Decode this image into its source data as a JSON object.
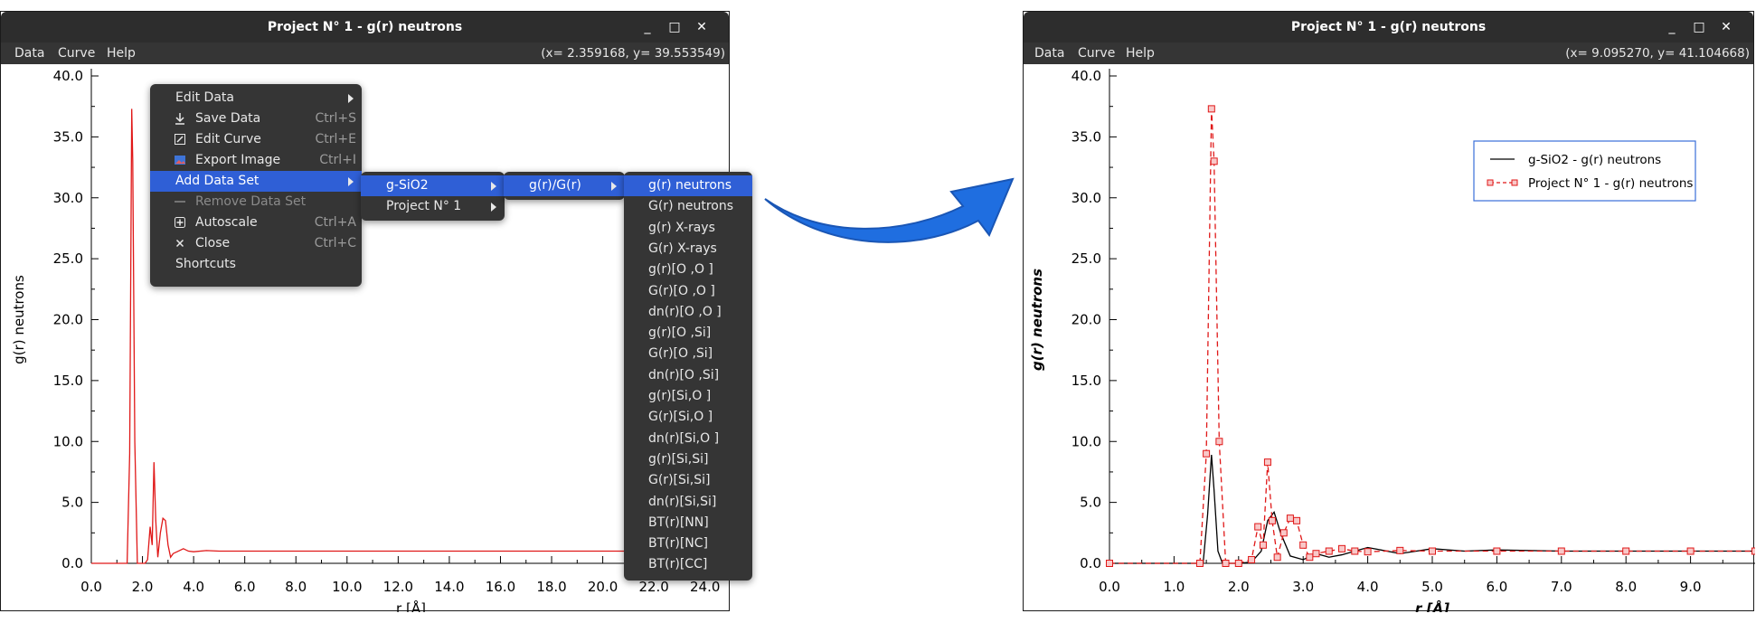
{
  "left_window": {
    "title": "Project N° 1 - g(r) neutrons",
    "menu": [
      "Data",
      "Curve",
      "Help"
    ],
    "coords": "(x= 2.359168, y= 39.553549)",
    "controls": {
      "minimize": "_",
      "maximize": "□",
      "close": "✕"
    }
  },
  "right_window": {
    "title": "Project N° 1 - g(r) neutrons",
    "menu": [
      "Data",
      "Curve",
      "Help"
    ],
    "coords": "(x= 9.095270, y= 41.104668)",
    "controls": {
      "minimize": "_",
      "maximize": "□",
      "close": "✕"
    }
  },
  "context_menu": {
    "items": [
      {
        "label": "Edit Data",
        "shortcut": "",
        "icon": "",
        "submenu": true
      },
      {
        "label": "Save Data",
        "shortcut": "Ctrl+S",
        "icon": "save-icon"
      },
      {
        "label": "Edit Curve",
        "shortcut": "Ctrl+E",
        "icon": "edit-icon"
      },
      {
        "label": "Export Image",
        "shortcut": "Ctrl+I",
        "icon": "image-icon"
      },
      {
        "label": "Add Data Set",
        "shortcut": "",
        "icon": "",
        "submenu": true,
        "selected": true
      },
      {
        "label": "Remove Data Set",
        "shortcut": "",
        "icon": "minus-icon",
        "disabled": true
      },
      {
        "label": "Autoscale",
        "shortcut": "Ctrl+A",
        "icon": "autoscale-icon"
      },
      {
        "label": "Close",
        "shortcut": "Ctrl+C",
        "icon": "close-icon"
      },
      {
        "label": "Shortcuts",
        "shortcut": "",
        "icon": ""
      }
    ]
  },
  "submenu_datasets": {
    "items": [
      "g-SiO2",
      "Project N° 1"
    ]
  },
  "submenu_type": {
    "items": [
      "g(r)/G(r)"
    ]
  },
  "submenu_curves": {
    "items": [
      "g(r) neutrons",
      "G(r) neutrons",
      "g(r) X-rays",
      "G(r) X-rays",
      "g(r)[O ,O ]",
      "G(r)[O ,O ]",
      "dn(r)[O ,O ]",
      "g(r)[O ,Si]",
      "G(r)[O ,Si]",
      "dn(r)[O ,Si]",
      "g(r)[Si,O ]",
      "G(r)[Si,O ]",
      "dn(r)[Si,O ]",
      "g(r)[Si,Si]",
      "G(r)[Si,Si]",
      "dn(r)[Si,Si]",
      "BT(r)[NN]",
      "BT(r)[NC]",
      "BT(r)[CC]"
    ]
  },
  "colors": {
    "titlebar": "#2d2d2d",
    "menu_bg": "#353535",
    "selection": "#2f5fd6",
    "series_red": "#e01818",
    "series_black": "#000000",
    "arrow": "#1f6ee0"
  },
  "chart_data": [
    {
      "type": "line",
      "xlabel": "r [Å]",
      "ylabel": "g(r) neutrons",
      "xlim": [
        0,
        25
      ],
      "ylim": [
        0,
        40
      ],
      "xticks": [
        "0.0",
        "2.0",
        "4.0",
        "6.0",
        "8.0",
        "10.0",
        "12.0",
        "14.0",
        "16.0",
        "18.0",
        "20.0",
        "22.0",
        "24.0"
      ],
      "yticks": [
        "0.0",
        "5.0",
        "10.0",
        "15.0",
        "20.0",
        "25.0",
        "30.0",
        "35.0",
        "40.0"
      ],
      "series": [
        {
          "color": "#e01818",
          "x": [
            0,
            1.4,
            1.5,
            1.58,
            1.62,
            1.7,
            1.8,
            1.9,
            2.0,
            2.1,
            2.2,
            2.3,
            2.38,
            2.45,
            2.52,
            2.6,
            2.7,
            2.8,
            2.9,
            3.0,
            3.1,
            3.2,
            3.4,
            3.6,
            3.8,
            4.0,
            4.5,
            5,
            6,
            8,
            10,
            12,
            14,
            16,
            18,
            20,
            22,
            24,
            25
          ],
          "y": [
            0,
            0,
            9,
            37.3,
            33,
            10,
            0,
            0,
            0,
            0,
            0.3,
            3,
            1.5,
            8.3,
            3.5,
            0.5,
            2.5,
            3.7,
            3.5,
            1.5,
            0.5,
            0.8,
            1.0,
            1.2,
            1.0,
            0.95,
            1.05,
            1.0,
            1.0,
            1.0,
            1.0,
            1.0,
            1.0,
            1.0,
            1.0,
            1.0,
            1.0,
            1.0,
            1.0
          ]
        }
      ]
    },
    {
      "type": "line",
      "xlabel": "r [Å]",
      "ylabel": "g(r) neutrons",
      "xlim": [
        0,
        10
      ],
      "ylim": [
        0,
        40
      ],
      "xticks": [
        "0.0",
        "1.0",
        "2.0",
        "3.0",
        "4.0",
        "5.0",
        "6.0",
        "7.0",
        "8.0",
        "9.0"
      ],
      "yticks": [
        "0.0",
        "5.0",
        "10.0",
        "15.0",
        "20.0",
        "25.0",
        "30.0",
        "35.0",
        "40.0"
      ],
      "legend_position": "top-right",
      "series": [
        {
          "name": "g-SiO2 - g(r) neutrons",
          "color": "#000000",
          "dash": "solid",
          "x": [
            0,
            1.45,
            1.52,
            1.58,
            1.62,
            1.68,
            1.75,
            2.0,
            2.2,
            2.35,
            2.45,
            2.55,
            2.65,
            2.8,
            3.0,
            3.2,
            3.4,
            3.6,
            3.8,
            4.0,
            4.2,
            4.5,
            5.0,
            5.5,
            6.0,
            7.0,
            8.0,
            9.0,
            10.0
          ],
          "y": [
            0,
            0,
            4,
            8.9,
            6,
            1,
            0,
            0,
            0.1,
            1.0,
            3.5,
            4.2,
            2.5,
            0.6,
            0.3,
            0.8,
            0.5,
            0.7,
            1.0,
            1.3,
            1.1,
            0.8,
            1.2,
            1.0,
            1.1,
            1.0,
            1.0,
            1.0,
            1.0
          ]
        },
        {
          "name": "Project N° 1 - g(r) neutrons",
          "color": "#e01818",
          "dash": "dashed",
          "marker": "square",
          "x": [
            0,
            1.4,
            1.5,
            1.58,
            1.62,
            1.7,
            1.8,
            2.0,
            2.2,
            2.3,
            2.38,
            2.45,
            2.52,
            2.6,
            2.7,
            2.8,
            2.9,
            3.0,
            3.1,
            3.2,
            3.4,
            3.6,
            3.8,
            4.0,
            4.5,
            5.0,
            6.0,
            7.0,
            8.0,
            9.0,
            10.0
          ],
          "y": [
            0,
            0,
            9,
            37.3,
            33,
            10,
            0,
            0,
            0.3,
            3.0,
            1.5,
            8.3,
            3.5,
            0.5,
            2.5,
            3.7,
            3.5,
            1.5,
            0.5,
            0.8,
            1.0,
            1.2,
            1.0,
            0.95,
            1.05,
            1.0,
            1.0,
            1.0,
            1.0,
            1.0,
            1.0
          ]
        }
      ]
    }
  ]
}
